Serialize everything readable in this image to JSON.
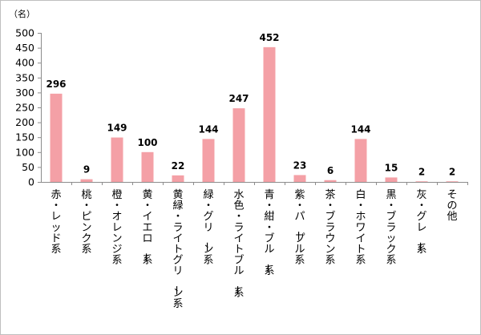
{
  "chart_data": {
    "type": "bar",
    "unit": "（名）",
    "ylim": [
      0,
      500
    ],
    "ytick_step": 50,
    "yticks": [
      "0",
      "50",
      "100",
      "150",
      "200",
      "250",
      "300",
      "350",
      "400",
      "450",
      "500"
    ],
    "grid": false,
    "bar_color": "#f4a0a6",
    "categories": [
      "赤・レッド系",
      "桃・ピンク系",
      "橙・オレンジ系",
      "黄・イエロー系",
      "黄緑・ライトグリーン系",
      "緑・グリーン系",
      "水色・ライトブルー系",
      "青・紺・ブルー系",
      "紫・パープル系",
      "茶・ブラウン系",
      "白・ホワイト系",
      "黒・ブラック系",
      "灰・グレー系",
      "その他"
    ],
    "values": [
      296,
      9,
      149,
      100,
      22,
      144,
      247,
      452,
      23,
      6,
      144,
      15,
      2,
      2
    ],
    "data_labels": [
      "296",
      "9",
      "149",
      "100",
      "22",
      "144",
      "247",
      "452",
      "23",
      "6",
      "144",
      "15",
      "2",
      "2"
    ]
  }
}
